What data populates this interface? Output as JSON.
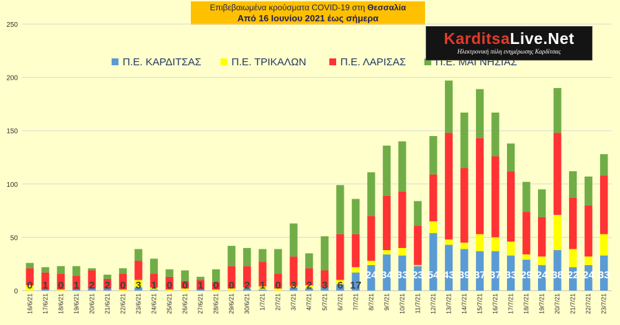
{
  "title": {
    "line1_prefix": "Επιβεβαιωμένα κρούσματα COVID-19 στη ",
    "line1_region": "Θεσσαλία",
    "line2": "Από 16 Ιουνίου 2021 έως σήμερα"
  },
  "logo": {
    "name_part1": "Karditsa",
    "name_part2": "Live",
    "name_part3": ".Net",
    "tagline": "Ηλεκτρονική πύλη ενημέρωσης Καρδίτσας"
  },
  "colors": {
    "background": "#ffffcc",
    "title_box": "#ffc000",
    "gridline": "#d9d9d9",
    "label_dark": "#404040",
    "label_light": "#ffffff"
  },
  "chart_data": {
    "type": "bar",
    "stacked": true,
    "ylim": [
      0,
      250
    ],
    "yticks": [
      0,
      50,
      100,
      150,
      200,
      250
    ],
    "grid": true,
    "legend_position": "top",
    "categories": [
      "16/6/21",
      "17/6/21",
      "18/6/21",
      "19/6/21",
      "20/6/21",
      "21/6/21",
      "22/6/21",
      "23/6/21",
      "24/6/21",
      "25/6/21",
      "26/6/21",
      "27/6/21",
      "28/6/21",
      "29/6/21",
      "30/6/21",
      "1/7/21",
      "2/7/21",
      "3/7/21",
      "4/7/21",
      "5/7/21",
      "6/7/21",
      "7/7/21",
      "8/7/21",
      "9/7/21",
      "10/7/21",
      "11/7/21",
      "12/7/21",
      "13/7/21",
      "14/7/21",
      "15/7/21",
      "16/7/21",
      "17/7/21",
      "18/7/21",
      "19/7/21",
      "20/7/21",
      "21/7/21",
      "22/7/21",
      "23/7/21"
    ],
    "series": [
      {
        "name": "Π.Ε. ΚΑΡΔΙΤΣΑΣ",
        "color": "#5b9bd5",
        "values": [
          0,
          1,
          0,
          1,
          2,
          2,
          0,
          3,
          1,
          0,
          0,
          1,
          0,
          0,
          2,
          1,
          0,
          3,
          2,
          3,
          6,
          17,
          24,
          34,
          33,
          23,
          54,
          43,
          39,
          37,
          37,
          33,
          29,
          24,
          38,
          22,
          24,
          33
        ]
      },
      {
        "name": "Π.Ε. ΤΡΙΚΑΛΩΝ",
        "color": "#ffff00",
        "values": [
          5,
          0,
          1,
          0,
          0,
          0,
          1,
          7,
          2,
          1,
          2,
          0,
          1,
          2,
          1,
          3,
          2,
          1,
          3,
          0,
          4,
          5,
          4,
          4,
          7,
          1,
          11,
          5,
          6,
          16,
          13,
          13,
          5,
          8,
          33,
          17,
          8,
          20
        ]
      },
      {
        "name": "Π.Ε. ΛΑΡΙΣΑΣ",
        "color": "#ff3333",
        "values": [
          16,
          16,
          15,
          13,
          17,
          9,
          15,
          18,
          13,
          12,
          7,
          9,
          7,
          21,
          20,
          23,
          14,
          28,
          16,
          16,
          43,
          31,
          42,
          51,
          53,
          37,
          44,
          100,
          70,
          90,
          76,
          66,
          40,
          37,
          77,
          48,
          48,
          55
        ]
      },
      {
        "name": "Π.Ε. ΜΑΓΝΗΣΙΑΣ",
        "color": "#70ad47",
        "values": [
          5,
          5,
          7,
          9,
          2,
          4,
          5,
          11,
          14,
          7,
          10,
          3,
          12,
          19,
          17,
          12,
          23,
          31,
          14,
          32,
          46,
          33,
          41,
          47,
          47,
          23,
          36,
          49,
          52,
          46,
          41,
          26,
          28,
          26,
          42,
          25,
          27,
          20
        ]
      }
    ],
    "data_labels_series": "Π.Ε. ΚΑΡΔΙΤΣΑΣ"
  }
}
